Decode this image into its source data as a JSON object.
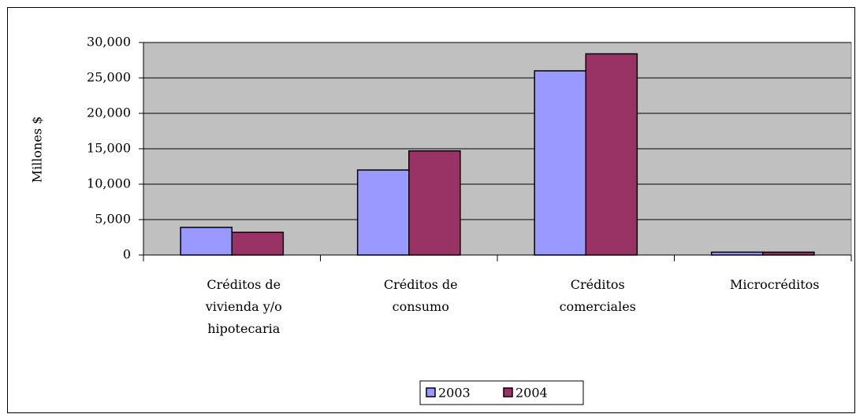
{
  "chart_data": {
    "type": "bar",
    "y_label": "Millones $",
    "categories": [
      "Créditos de vivienda y/o hipotecaria",
      "Créditos de consumo",
      "Créditos comerciales",
      "Microcréditos"
    ],
    "series": [
      {
        "name": "2003",
        "color": "#9999ff",
        "values": [
          3900,
          12000,
          26000,
          400
        ]
      },
      {
        "name": "2004",
        "color": "#993366",
        "values": [
          3200,
          14700,
          28400,
          400
        ]
      }
    ],
    "ylim": [
      0,
      30000
    ],
    "yticks": [
      0,
      {
        "value": 5000,
        "label": "5,000"
      },
      {
        "value": 10000,
        "label": "10,000"
      },
      {
        "value": 15000,
        "label": "15,000"
      },
      {
        "value": 20000,
        "label": "20,000"
      },
      {
        "value": 25000,
        "label": "25,000"
      },
      {
        "value": 30000,
        "label": "30,000"
      }
    ],
    "grid": true,
    "legend": "bottom",
    "plot_background": "#c0c0c0"
  }
}
